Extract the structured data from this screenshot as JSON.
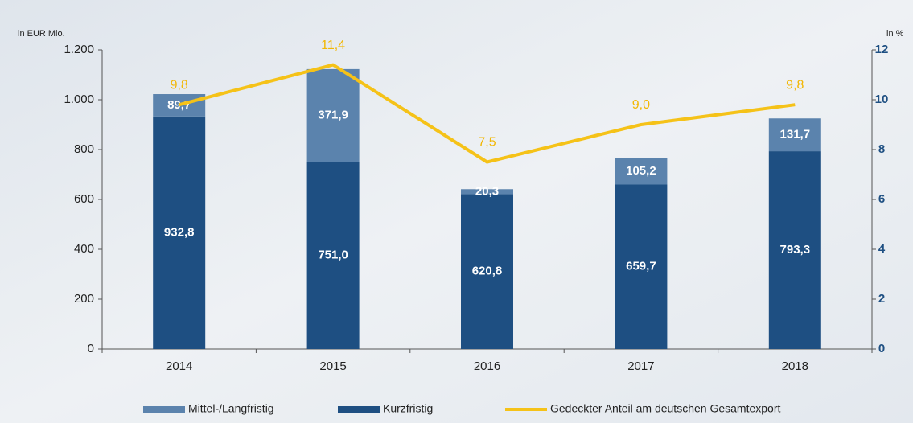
{
  "chart_data": {
    "type": "bar",
    "y_label": "in EUR Mio.",
    "y2_label": "in %",
    "categories": [
      "2014",
      "2015",
      "2016",
      "2017",
      "2018"
    ],
    "series": [
      {
        "name": "Mittel-/Langfristig",
        "color": "#5b83ad",
        "type": "bar",
        "values": [
          89.7,
          371.9,
          20.3,
          105.2,
          131.7
        ],
        "value_labels": [
          "89,7",
          "371,9",
          "20,3",
          "105,2",
          "131,7"
        ]
      },
      {
        "name": "Kurzfristig",
        "color": "#1e4f82",
        "type": "bar",
        "values": [
          932.8,
          751.0,
          620.8,
          659.7,
          793.3
        ],
        "value_labels": [
          "932,8",
          "751,0",
          "620,8",
          "659,7",
          "793,3"
        ]
      },
      {
        "name": "Gedeckter Anteil am deutschen Gesamtexport",
        "color": "#f5c218",
        "type": "line",
        "axis": "y2",
        "values": [
          9.8,
          11.4,
          7.5,
          9.0,
          9.8
        ],
        "value_labels": [
          "9,8",
          "11,4",
          "7,5",
          "9,0",
          "9,8"
        ]
      }
    ],
    "ylim": [
      0,
      1200
    ],
    "yticks": [
      0,
      200,
      400,
      600,
      800,
      {
        "value": 1000,
        "label": "1.000"
      },
      {
        "value": 1200,
        "label": "1.200"
      }
    ],
    "y2lim": [
      0,
      12
    ],
    "y2ticks": [
      0,
      2,
      4,
      6,
      8,
      10,
      12
    ]
  }
}
